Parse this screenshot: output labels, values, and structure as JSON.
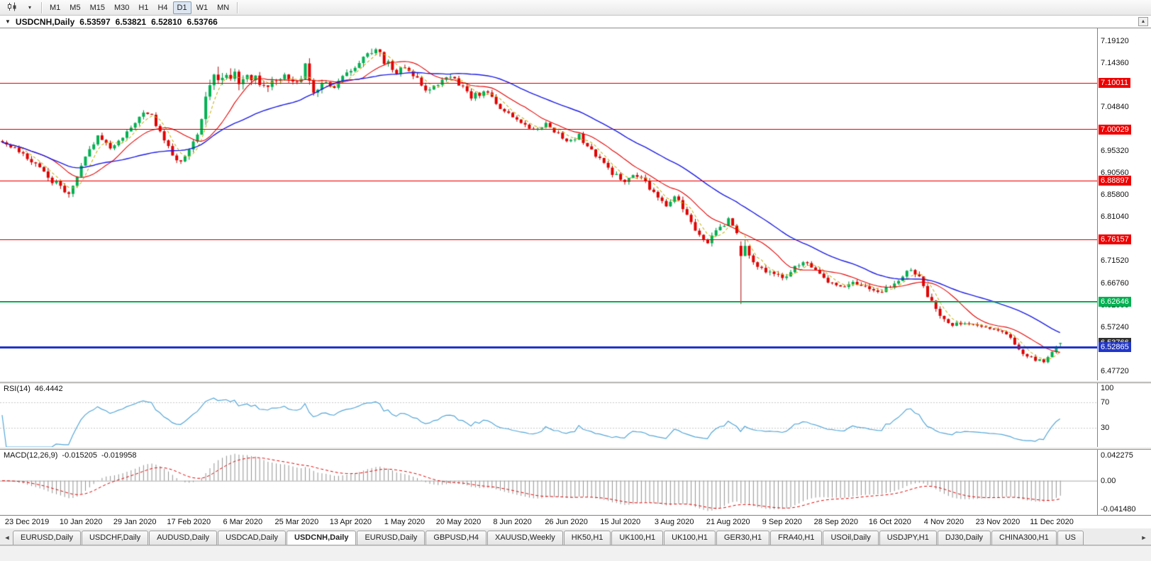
{
  "toolbar": {
    "dropdown_icon": "▾",
    "timeframes": [
      {
        "label": "M1"
      },
      {
        "label": "M5"
      },
      {
        "label": "M15"
      },
      {
        "label": "M30"
      },
      {
        "label": "H1"
      },
      {
        "label": "H4"
      },
      {
        "label": "D1",
        "active": true
      },
      {
        "label": "W1"
      },
      {
        "label": "MN"
      }
    ]
  },
  "chart": {
    "collapse_icon": "▼",
    "scroll_up_icon": "▲",
    "title": {
      "symbol_period": "USDCNH,Daily",
      "open": "6.53597",
      "high": "6.53821",
      "low": "6.52810",
      "close": "6.53766"
    },
    "price_axis": {
      "ticks": [
        "7.19120",
        "7.14360",
        "7.09600",
        "7.04840",
        "7.00080",
        "6.95320",
        "6.90560",
        "6.85800",
        "6.81040",
        "6.76280",
        "6.71520",
        "6.66760",
        "6.62000",
        "6.57240",
        "6.52480",
        "6.47720"
      ],
      "current_price": {
        "value": "6.53766",
        "price": 6.53766,
        "bg": "#2f2f2f"
      }
    }
  },
  "indicators": {
    "rsi": {
      "label": "RSI(14)",
      "value": "46.4442",
      "axis_labels": [
        {
          "value": 100,
          "text": "100"
        },
        {
          "value": 70,
          "text": "70"
        },
        {
          "value": 30,
          "text": "30"
        }
      ],
      "dashed_levels": [
        70,
        30
      ],
      "line_color": "#53a6d8"
    },
    "macd": {
      "label": "MACD(12,26,9)",
      "main_value": "-0.015205",
      "signal_value": "-0.019958",
      "axis_top": "0.042275",
      "axis_zero": "0.00",
      "axis_bottom": "-0.041480",
      "histogram_color": "#929292",
      "signal_color": "#e00000"
    }
  },
  "chart_data": {
    "type": "candlestick",
    "symbol": "USDCNH",
    "timeframe": "Daily",
    "bars": 256,
    "seed": 20201216,
    "price_view": {
      "top": 7.2188,
      "bottom": 6.4568
    },
    "candle_up_color": "#00b050",
    "candle_down_color": "#e00000",
    "levels": [
      {
        "price": 7.10011,
        "label": "7.10011",
        "color": "#ee0000",
        "thickness": 1
      },
      {
        "price": 7.00029,
        "label": "7.00029",
        "color": "#ee0000",
        "thickness": 1
      },
      {
        "price": 6.88897,
        "label": "6.88897",
        "color": "#ee0000",
        "thickness": 1
      },
      {
        "price": 6.76157,
        "label": "6.76157",
        "color": "#ee0000",
        "thickness": 1
      },
      {
        "price": 6.62646,
        "label": "6.62646",
        "color": "#00b050",
        "thickness": 2
      },
      {
        "price": 6.52865,
        "label": "6.52865",
        "color": "#2136c8",
        "thickness": 3
      }
    ],
    "last_bar": {
      "open": 6.53597,
      "high": 6.53821,
      "low": 6.5281,
      "close": 6.53766
    },
    "moving_averages": [
      {
        "window": 5,
        "color": "#c8b414",
        "dash": true
      },
      {
        "window": 13,
        "color": "#e60000",
        "dash": false
      },
      {
        "window": 34,
        "color": "#1a1ae6",
        "dash": false
      }
    ],
    "anchors": [
      [
        0,
        6.975
      ],
      [
        5,
        6.946
      ],
      [
        10,
        6.908
      ],
      [
        14,
        6.872
      ],
      [
        16,
        6.86
      ],
      [
        18,
        6.898
      ],
      [
        21,
        6.958
      ],
      [
        23,
        6.982
      ],
      [
        26,
        6.958
      ],
      [
        28,
        6.975
      ],
      [
        31,
        7.006
      ],
      [
        34,
        7.04
      ],
      [
        36,
        7.028
      ],
      [
        39,
        6.98
      ],
      [
        41,
        6.945
      ],
      [
        43,
        6.93
      ],
      [
        45,
        6.955
      ],
      [
        47,
        6.992
      ],
      [
        49,
        7.068
      ],
      [
        51,
        7.13
      ],
      [
        53,
        7.098
      ],
      [
        56,
        7.118
      ],
      [
        58,
        7.102
      ],
      [
        61,
        7.12
      ],
      [
        63,
        7.086
      ],
      [
        66,
        7.108
      ],
      [
        68,
        7.116
      ],
      [
        71,
        7.094
      ],
      [
        73,
        7.14
      ],
      [
        75,
        7.088
      ],
      [
        78,
        7.104
      ],
      [
        80,
        7.094
      ],
      [
        83,
        7.118
      ],
      [
        85,
        7.134
      ],
      [
        88,
        7.158
      ],
      [
        90,
        7.178
      ],
      [
        92,
        7.148
      ],
      [
        95,
        7.124
      ],
      [
        97,
        7.14
      ],
      [
        100,
        7.108
      ],
      [
        102,
        7.088
      ],
      [
        105,
        7.096
      ],
      [
        108,
        7.114
      ],
      [
        111,
        7.092
      ],
      [
        113,
        7.072
      ],
      [
        117,
        7.08
      ],
      [
        119,
        7.054
      ],
      [
        122,
        7.038
      ],
      [
        125,
        7.014
      ],
      [
        128,
        6.999
      ],
      [
        131,
        7.012
      ],
      [
        133,
        6.997
      ],
      [
        136,
        6.974
      ],
      [
        139,
        6.986
      ],
      [
        142,
        6.954
      ],
      [
        144,
        6.934
      ],
      [
        147,
        6.906
      ],
      [
        150,
        6.884
      ],
      [
        152,
        6.906
      ],
      [
        155,
        6.886
      ],
      [
        157,
        6.86
      ],
      [
        160,
        6.838
      ],
      [
        162,
        6.852
      ],
      [
        165,
        6.818
      ],
      [
        167,
        6.782
      ],
      [
        170,
        6.758
      ],
      [
        172,
        6.78
      ],
      [
        175,
        6.802
      ],
      [
        177,
        6.772
      ],
      [
        179,
        6.742
      ],
      [
        181,
        6.712
      ],
      [
        183,
        6.698
      ],
      [
        185,
        6.69
      ],
      [
        188,
        6.676
      ],
      [
        190,
        6.694
      ],
      [
        193,
        6.714
      ],
      [
        196,
        6.698
      ],
      [
        199,
        6.67
      ],
      [
        202,
        6.66
      ],
      [
        205,
        6.666
      ],
      [
        208,
        6.656
      ],
      [
        211,
        6.646
      ],
      [
        214,
        6.66
      ],
      [
        217,
        6.686
      ],
      [
        219,
        6.696
      ],
      [
        221,
        6.676
      ],
      [
        223,
        6.64
      ],
      [
        225,
        6.606
      ],
      [
        227,
        6.588
      ],
      [
        229,
        6.576
      ],
      [
        232,
        6.584
      ],
      [
        235,
        6.572
      ],
      [
        238,
        6.568
      ],
      [
        241,
        6.564
      ],
      [
        243,
        6.548
      ],
      [
        245,
        6.526
      ],
      [
        247,
        6.51
      ],
      [
        249,
        6.502
      ],
      [
        251,
        6.5
      ],
      [
        253,
        6.52
      ],
      [
        255,
        6.536
      ]
    ],
    "volatility_anchors": [
      [
        0,
        0.012
      ],
      [
        14,
        0.016
      ],
      [
        21,
        0.013
      ],
      [
        34,
        0.011
      ],
      [
        43,
        0.012
      ],
      [
        47,
        0.02
      ],
      [
        51,
        0.034
      ],
      [
        56,
        0.028
      ],
      [
        61,
        0.022
      ],
      [
        70,
        0.018
      ],
      [
        73,
        0.024
      ],
      [
        80,
        0.014
      ],
      [
        88,
        0.018
      ],
      [
        90,
        0.022
      ],
      [
        95,
        0.016
      ],
      [
        105,
        0.013
      ],
      [
        113,
        0.012
      ],
      [
        128,
        0.011
      ],
      [
        144,
        0.011
      ],
      [
        157,
        0.013
      ],
      [
        165,
        0.015
      ],
      [
        172,
        0.014
      ],
      [
        181,
        0.013
      ],
      [
        190,
        0.012
      ],
      [
        202,
        0.011
      ],
      [
        214,
        0.011
      ],
      [
        223,
        0.016
      ],
      [
        229,
        0.011
      ],
      [
        238,
        0.007
      ],
      [
        245,
        0.01
      ],
      [
        251,
        0.009
      ],
      [
        255,
        0.007
      ]
    ],
    "overrides": [
      {
        "idx": 178,
        "open": 6.748,
        "high": 6.758,
        "low": 6.622,
        "close": 6.726
      },
      {
        "idx": 255,
        "open": 6.53597,
        "high": 6.53821,
        "low": 6.5281,
        "close": 6.53766
      }
    ],
    "date_labels": [
      "23 Dec 2019",
      "10 Jan 2020",
      "29 Jan 2020",
      "17 Feb 2020",
      "6 Mar 2020",
      "25 Mar 2020",
      "13 Apr 2020",
      "1 May 2020",
      "20 May 2020",
      "8 Jun 2020",
      "26 Jun 2020",
      "15 Jul 2020",
      "3 Aug 2020",
      "21 Aug 2020",
      "9 Sep 2020",
      "28 Sep 2020",
      "16 Oct 2020",
      "4 Nov 2020",
      "23 Nov 2020",
      "11 Dec 2020"
    ]
  },
  "tabs": {
    "scroll_left_icon": "◄",
    "scroll_right_icon": "►",
    "items": [
      {
        "label": "EURUSD,Daily"
      },
      {
        "label": "USDCHF,Daily"
      },
      {
        "label": "AUDUSD,Daily"
      },
      {
        "label": "USDCAD,Daily"
      },
      {
        "label": "USDCNH,Daily",
        "active": true
      },
      {
        "label": "EURUSD,Daily"
      },
      {
        "label": "GBPUSD,H4"
      },
      {
        "label": "XAUUSD,Weekly"
      },
      {
        "label": "HK50,H1"
      },
      {
        "label": "UK100,H1"
      },
      {
        "label": "UK100,H1"
      },
      {
        "label": "GER30,H1"
      },
      {
        "label": "FRA40,H1"
      },
      {
        "label": "USOil,Daily"
      },
      {
        "label": "USDJPY,H1"
      },
      {
        "label": "DJ30,Daily"
      },
      {
        "label": "CHINA300,H1"
      },
      {
        "label": "US"
      }
    ]
  }
}
